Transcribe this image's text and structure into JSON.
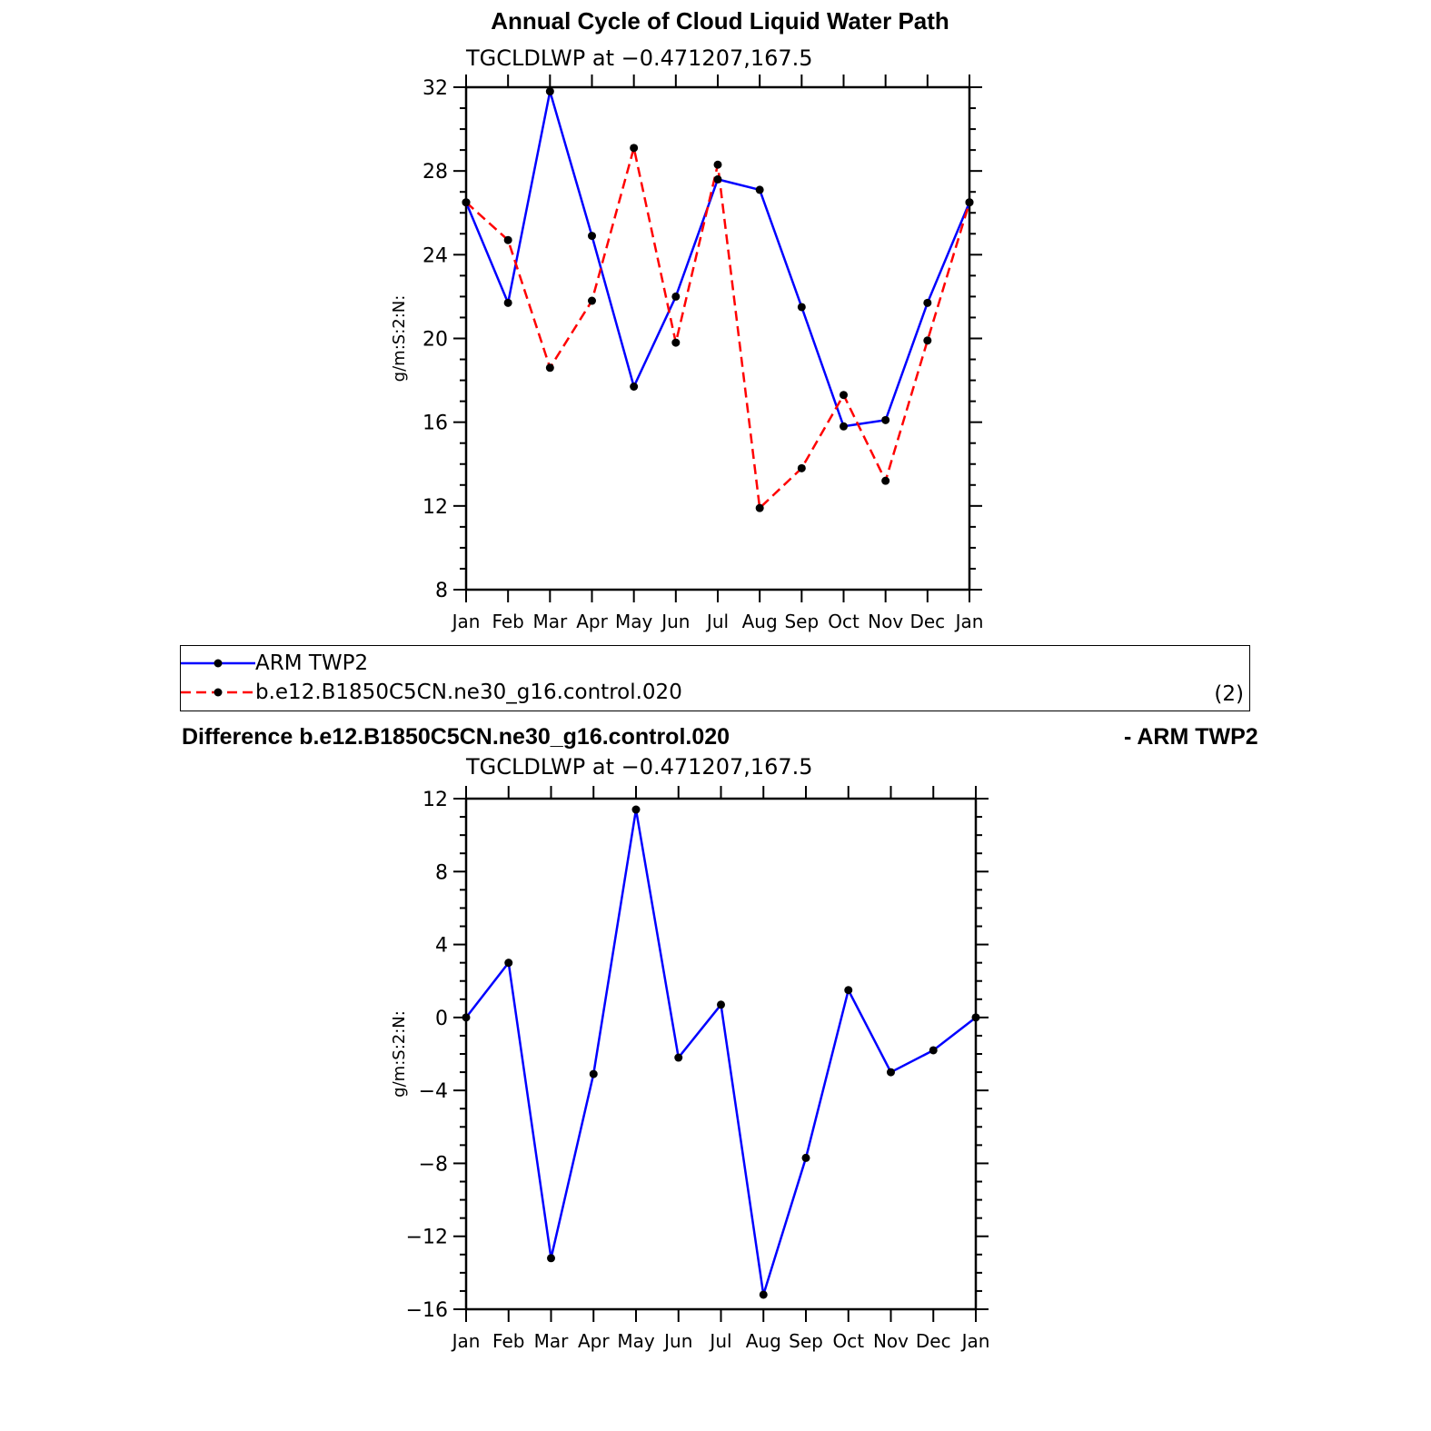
{
  "panels": {
    "top": {
      "title": "Annual Cycle of Cloud Liquid Water Path",
      "subtitle": "TGCLDLWP  at  −0.471207,167.5"
    },
    "bottom": {
      "title_left": "Difference b.e12.B1850C5CN.ne30_g16.control.020",
      "title_right": "- ARM TWP2",
      "subtitle": "TGCLDLWP  at  −0.471207,167.5"
    }
  },
  "legend": {
    "entries": [
      {
        "label": "ARM  TWP2",
        "color": "#0000ff",
        "dash": "solid"
      },
      {
        "label": "b.e12.B1850C5CN.ne30_g16.control.020",
        "color": "#ff0000",
        "dash": "dashed"
      }
    ],
    "page_tag": "(2)"
  },
  "chart_data": [
    {
      "type": "line",
      "title": "Annual Cycle of Cloud Liquid Water Path",
      "subtitle": "TGCLDLWP  at  −0.471207,167.5",
      "ylabel": "g/m:S:2:N:",
      "xlabel": "",
      "categories": [
        "Jan",
        "Feb",
        "Mar",
        "Apr",
        "May",
        "Jun",
        "Jul",
        "Aug",
        "Sep",
        "Oct",
        "Nov",
        "Dec",
        "Jan"
      ],
      "ylim": [
        8,
        32
      ],
      "yticks": [
        8,
        12,
        16,
        20,
        24,
        28,
        32
      ],
      "ytick_labels": [
        "8",
        "12",
        "16",
        "20",
        "24",
        "28",
        "32"
      ],
      "grid": false,
      "legend_position": "below",
      "series": [
        {
          "name": "ARM  TWP2",
          "color": "#0000ff",
          "dash": "solid",
          "values": [
            26.5,
            21.7,
            31.8,
            24.9,
            17.7,
            22.0,
            27.6,
            27.1,
            21.5,
            15.8,
            16.1,
            21.7,
            26.5
          ]
        },
        {
          "name": "b.e12.B1850C5CN.ne30_g16.control.020",
          "color": "#ff0000",
          "dash": "dashed",
          "values": [
            26.5,
            24.7,
            18.6,
            21.8,
            29.1,
            19.8,
            28.3,
            11.9,
            13.8,
            17.3,
            13.2,
            19.9,
            26.5
          ]
        }
      ]
    },
    {
      "type": "line",
      "title": "Difference b.e12.B1850C5CN.ne30_g16.control.020 - ARM TWP2",
      "subtitle": "TGCLDLWP  at  −0.471207,167.5",
      "ylabel": "g/m:S:2:N:",
      "xlabel": "",
      "categories": [
        "Jan",
        "Feb",
        "Mar",
        "Apr",
        "May",
        "Jun",
        "Jul",
        "Aug",
        "Sep",
        "Oct",
        "Nov",
        "Dec",
        "Jan"
      ],
      "ylim": [
        -16,
        12
      ],
      "yticks": [
        -16,
        -12,
        -8,
        -4,
        0,
        4,
        8,
        12
      ],
      "ytick_labels": [
        "−16",
        "−12",
        "−8",
        "−4",
        "0",
        "4",
        "8",
        "12"
      ],
      "grid": false,
      "series": [
        {
          "color": "#0000ff",
          "dash": "solid",
          "values": [
            0.0,
            3.0,
            -13.2,
            -3.1,
            11.4,
            -2.2,
            0.7,
            -15.2,
            -7.7,
            1.5,
            -3.0,
            -1.8,
            0.0
          ]
        }
      ]
    }
  ]
}
